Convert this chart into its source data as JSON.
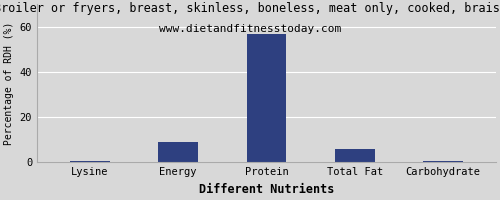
{
  "title": "Broiler or fryers, breast, skinless, boneless, meat only, cooked, braise",
  "subtitle": "www.dietandfitnesstoday.com",
  "xlabel": "Different Nutrients",
  "ylabel": "Percentage of RDH (%)",
  "categories": [
    "Lysine",
    "Energy",
    "Protein",
    "Total Fat",
    "Carbohydrate"
  ],
  "values": [
    0.5,
    9.0,
    57.0,
    6.0,
    0.5
  ],
  "bar_color": "#2e4080",
  "ylim": [
    0,
    70
  ],
  "yticks": [
    0,
    20,
    40,
    60
  ],
  "background_color": "#d8d8d8",
  "title_fontsize": 8.5,
  "subtitle_fontsize": 8.0,
  "xlabel_fontsize": 8.5,
  "ylabel_fontsize": 7,
  "tick_fontsize": 7.5
}
